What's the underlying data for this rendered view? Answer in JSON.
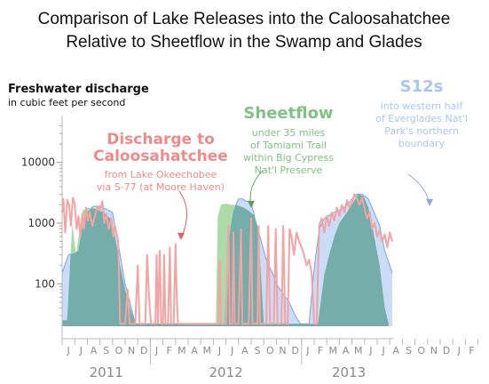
{
  "title_line1": "Comparison of Lake Releases into the Caloosahatchee",
  "title_line2": "Relative to Sheetflow in the Swamp and Glades",
  "ylabel_main": "Freshwater discharge",
  "ylabel_sub": "in cubic feet per second",
  "annotations": {
    "discharge": {
      "title": [
        "Discharge to",
        "Caloosahatchee"
      ],
      "sub": [
        "from Lake Okeechobee",
        "via S-77 (at Moore Haven)"
      ]
    },
    "sheetflow": {
      "title": [
        "Sheetflow"
      ],
      "sub": [
        "under 35 miles",
        "of Tamiami Trail",
        "within Big Cypress",
        "Nat'l Preserve"
      ]
    },
    "s12s": {
      "title": [
        "S12s"
      ],
      "sub": [
        "into western half",
        "of Everglades Nat'l",
        "Park's northern",
        "boundary"
      ]
    }
  },
  "colors": {
    "discharge": "#f4a3a3",
    "sheetflow": "#9fd39a",
    "s12s": "#9fbff0",
    "overlap": "#6fa8a8",
    "axis": "#b8b8b8",
    "text_gray": "#8a8a8a"
  },
  "chart_data": {
    "type": "area",
    "scale": "log",
    "ylim": [
      20,
      50000
    ],
    "yticks": [
      "10000",
      "1000",
      "100"
    ],
    "tick_values": [
      10000,
      1000,
      100
    ],
    "month_labels": [
      "J",
      "J",
      "A",
      "S",
      "O",
      "N",
      "D",
      "J",
      "F",
      "M",
      "A",
      "M",
      "J",
      "J",
      "A",
      "S",
      "O",
      "N",
      "D",
      "J",
      "F",
      "M",
      "A",
      "M",
      "J",
      "J",
      "A",
      "S",
      "O",
      "N",
      "D",
      "J",
      "F",
      "M"
    ],
    "years": [
      {
        "label": "2011",
        "start_index": 0
      },
      {
        "label": "2012",
        "start_index": 7
      },
      {
        "label": "2013",
        "start_index": 19
      }
    ],
    "series": [
      {
        "key": "s12s",
        "points": [
          [
            0,
            150
          ],
          [
            0.5,
            300
          ],
          [
            1,
            320
          ],
          [
            1.3,
            350
          ],
          [
            1.6,
            800
          ],
          [
            2,
            1500
          ],
          [
            2.5,
            1900
          ],
          [
            3,
            1900
          ],
          [
            3.5,
            1700
          ],
          [
            4,
            1500
          ],
          [
            4.5,
            400
          ],
          [
            5,
            100
          ],
          [
            5.5,
            40
          ],
          [
            5.8,
            22
          ],
          [
            6.5,
            22
          ],
          [
            7.5,
            22
          ],
          [
            8.5,
            22
          ],
          [
            9.5,
            22
          ],
          [
            10.5,
            22
          ],
          [
            11.5,
            22
          ],
          [
            12.5,
            22
          ],
          [
            12.9,
            22
          ],
          [
            13.2,
            500
          ],
          [
            13.6,
            1600
          ],
          [
            14,
            2500
          ],
          [
            14.3,
            2500
          ],
          [
            14.6,
            2300
          ],
          [
            15,
            2200
          ],
          [
            15.3,
            1200
          ],
          [
            15.8,
            500
          ],
          [
            16.2,
            250
          ],
          [
            16.7,
            150
          ],
          [
            17,
            100
          ],
          [
            17.5,
            70
          ],
          [
            18,
            50
          ],
          [
            18.5,
            30
          ],
          [
            18.9,
            22
          ],
          [
            19.6,
            22
          ],
          [
            20,
            180
          ],
          [
            20.4,
            800
          ],
          [
            20.8,
            1200
          ],
          [
            21.3,
            1400
          ],
          [
            21.8,
            1600
          ],
          [
            22.2,
            1700
          ],
          [
            22.6,
            2000
          ],
          [
            23,
            2500
          ],
          [
            23.4,
            3000
          ],
          [
            23.8,
            3000
          ],
          [
            24.3,
            2500
          ],
          [
            24.7,
            1600
          ],
          [
            25.2,
            900
          ],
          [
            25.6,
            350
          ],
          [
            26,
            200
          ],
          [
            26.2,
            150
          ]
        ]
      },
      {
        "key": "sheetflow",
        "points": [
          [
            0,
            25
          ],
          [
            0.4,
            25
          ],
          [
            0.8,
            1000
          ],
          [
            1.1,
            300
          ],
          [
            1.6,
            1600
          ],
          [
            2,
            1800
          ],
          [
            2.3,
            1800
          ],
          [
            2.7,
            1700
          ],
          [
            3.3,
            1500
          ],
          [
            3.8,
            1200
          ],
          [
            4.2,
            600
          ],
          [
            4.6,
            200
          ],
          [
            5,
            80
          ],
          [
            5.4,
            40
          ],
          [
            5.8,
            22
          ],
          [
            12.2,
            22
          ],
          [
            12.35,
            1300
          ],
          [
            12.6,
            2000
          ],
          [
            13,
            2100
          ],
          [
            13.4,
            2000
          ],
          [
            13.8,
            2000
          ],
          [
            14.1,
            1900
          ],
          [
            14.4,
            1800
          ],
          [
            14.8,
            1600
          ],
          [
            15.3,
            1300
          ],
          [
            15.6,
            600
          ],
          [
            16,
            22
          ],
          [
            20.3,
            22
          ],
          [
            20.8,
            140
          ],
          [
            21.2,
            300
          ],
          [
            21.6,
            600
          ],
          [
            22,
            1000
          ],
          [
            22.6,
            1500
          ],
          [
            23,
            2000
          ],
          [
            23.5,
            3000
          ],
          [
            23.9,
            2800
          ],
          [
            24.3,
            1800
          ],
          [
            24.7,
            700
          ],
          [
            25.2,
            200
          ],
          [
            25.6,
            40
          ],
          [
            25.9,
            22
          ]
        ]
      },
      {
        "key": "discharge",
        "points": [
          [
            0,
            1500
          ],
          [
            0.1,
            2500
          ],
          [
            0.25,
            700
          ],
          [
            0.4,
            2400
          ],
          [
            0.55,
            2000
          ],
          [
            0.7,
            900
          ],
          [
            0.85,
            2600
          ],
          [
            1,
            2100
          ],
          [
            1.15,
            800
          ],
          [
            1.3,
            1300
          ],
          [
            1.45,
            600
          ],
          [
            1.6,
            1400
          ],
          [
            1.75,
            800
          ],
          [
            1.9,
            1800
          ],
          [
            2.05,
            1100
          ],
          [
            2.2,
            1500
          ],
          [
            2.4,
            900
          ],
          [
            2.6,
            1300
          ],
          [
            2.8,
            1900
          ],
          [
            3,
            1600
          ],
          [
            3.2,
            2300
          ],
          [
            3.35,
            1000
          ],
          [
            3.5,
            1400
          ],
          [
            3.7,
            800
          ],
          [
            3.9,
            1200
          ],
          [
            4.05,
            600
          ],
          [
            4.2,
            900
          ],
          [
            4.45,
            500
          ],
          [
            4.6,
            22
          ],
          [
            5.0,
            22
          ],
          [
            5.2,
            80
          ],
          [
            5.35,
            22
          ],
          [
            5.8,
            22
          ],
          [
            6.0,
            200
          ],
          [
            6.15,
            22
          ],
          [
            6.6,
            22
          ],
          [
            6.75,
            300
          ],
          [
            6.9,
            60
          ],
          [
            7.05,
            22
          ],
          [
            7.4,
            22
          ],
          [
            7.5,
            300
          ],
          [
            7.6,
            22
          ],
          [
            7.75,
            350
          ],
          [
            7.85,
            22
          ],
          [
            8.0,
            22
          ],
          [
            8.1,
            300
          ],
          [
            8.2,
            22
          ],
          [
            8.4,
            22
          ],
          [
            8.55,
            400
          ],
          [
            8.65,
            22
          ],
          [
            8.85,
            22
          ],
          [
            9.0,
            450
          ],
          [
            9.1,
            60
          ],
          [
            9.2,
            22
          ],
          [
            12.4,
            22
          ],
          [
            12.5,
            250
          ],
          [
            12.6,
            22
          ],
          [
            13.0,
            22
          ],
          [
            13.2,
            900
          ],
          [
            13.3,
            22
          ],
          [
            13.5,
            22
          ],
          [
            13.6,
            700
          ],
          [
            13.7,
            22
          ],
          [
            14.0,
            22
          ],
          [
            14.2,
            800
          ],
          [
            14.3,
            22
          ],
          [
            14.8,
            22
          ],
          [
            15.0,
            1200
          ],
          [
            15.1,
            22
          ],
          [
            15.5,
            22
          ],
          [
            15.6,
            900
          ],
          [
            15.7,
            22
          ],
          [
            16.2,
            22
          ],
          [
            16.35,
            900
          ],
          [
            16.5,
            22
          ],
          [
            16.8,
            22
          ],
          [
            16.95,
            800
          ],
          [
            17.1,
            22
          ],
          [
            17.4,
            22
          ],
          [
            17.55,
            900
          ],
          [
            17.7,
            22
          ],
          [
            17.9,
            22
          ],
          [
            18.05,
            800
          ],
          [
            18.2,
            600
          ],
          [
            18.4,
            300
          ],
          [
            18.6,
            700
          ],
          [
            18.8,
            500
          ],
          [
            19.0,
            400
          ],
          [
            19.2,
            300
          ],
          [
            19.4,
            200
          ],
          [
            19.6,
            250
          ],
          [
            19.8,
            150
          ],
          [
            20.0,
            22
          ],
          [
            20.2,
            22
          ],
          [
            20.4,
            900
          ],
          [
            20.6,
            1200
          ],
          [
            20.8,
            700
          ],
          [
            21.0,
            1300
          ],
          [
            21.2,
            900
          ],
          [
            21.4,
            1500
          ],
          [
            21.6,
            1100
          ],
          [
            21.8,
            1800
          ],
          [
            22.0,
            1300
          ],
          [
            22.2,
            2000
          ],
          [
            22.4,
            1500
          ],
          [
            22.6,
            2400
          ],
          [
            22.8,
            1800
          ],
          [
            23.0,
            2200
          ],
          [
            23.2,
            3000
          ],
          [
            23.4,
            2500
          ],
          [
            23.6,
            2000
          ],
          [
            23.8,
            2600
          ],
          [
            24.0,
            1700
          ],
          [
            24.2,
            1200
          ],
          [
            24.4,
            1500
          ],
          [
            24.6,
            800
          ],
          [
            24.8,
            1000
          ],
          [
            25.0,
            600
          ],
          [
            25.2,
            750
          ],
          [
            25.4,
            500
          ],
          [
            25.6,
            650
          ],
          [
            25.8,
            400
          ],
          [
            26.0,
            700
          ],
          [
            26.2,
            500
          ]
        ]
      }
    ]
  }
}
